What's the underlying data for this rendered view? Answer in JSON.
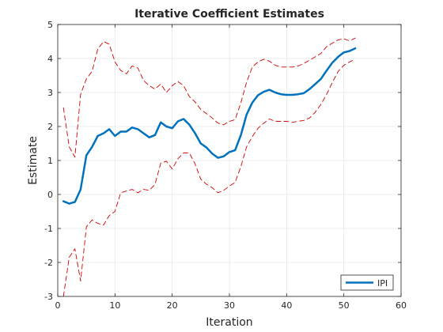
{
  "chart_data": {
    "type": "line",
    "title": "Iterative Coefficient Estimates",
    "xlabel": "Iteration",
    "ylabel": "Estimate",
    "xlim": [
      0,
      60
    ],
    "ylim": [
      -3,
      5
    ],
    "xticks": [
      0,
      10,
      20,
      30,
      40,
      50,
      60
    ],
    "yticks": [
      -3,
      -2,
      -1,
      0,
      1,
      2,
      3,
      4,
      5
    ],
    "grid": true,
    "legend_position": "bottom-right",
    "series": [
      {
        "name": "IPI",
        "role": "estimate",
        "color": "#0072BD",
        "style": "solid",
        "x": [
          1,
          2,
          3,
          4,
          5,
          6,
          7,
          8,
          9,
          10,
          11,
          12,
          13,
          14,
          15,
          16,
          17,
          18,
          19,
          20,
          21,
          22,
          23,
          24,
          25,
          26,
          27,
          28,
          29,
          30,
          31,
          32,
          33,
          34,
          35,
          36,
          37,
          38,
          39,
          40,
          41,
          42,
          43,
          44,
          45,
          46,
          47,
          48,
          49,
          50,
          51,
          52
        ],
        "y": [
          -0.2,
          -0.27,
          -0.22,
          0.15,
          1.15,
          1.4,
          1.72,
          1.8,
          1.92,
          1.72,
          1.85,
          1.85,
          1.97,
          1.92,
          1.8,
          1.68,
          1.75,
          2.12,
          2.0,
          1.95,
          2.15,
          2.22,
          2.05,
          1.8,
          1.5,
          1.38,
          1.2,
          1.08,
          1.12,
          1.25,
          1.3,
          1.75,
          2.35,
          2.7,
          2.92,
          3.02,
          3.08,
          3.0,
          2.95,
          2.93,
          2.93,
          2.95,
          2.98,
          3.1,
          3.25,
          3.4,
          3.65,
          3.88,
          4.05,
          4.18,
          4.22,
          4.3
        ]
      },
      {
        "name": "",
        "role": "upper-bound",
        "color": "#D00000",
        "style": "dashed",
        "x": [
          1,
          2,
          3,
          4,
          5,
          6,
          7,
          8,
          9,
          10,
          11,
          12,
          13,
          14,
          15,
          16,
          17,
          18,
          19,
          20,
          21,
          22,
          23,
          24,
          25,
          26,
          27,
          28,
          29,
          30,
          31,
          32,
          33,
          34,
          35,
          36,
          37,
          38,
          39,
          40,
          41,
          42,
          43,
          44,
          45,
          46,
          47,
          48,
          49,
          50,
          51,
          52
        ],
        "y": [
          2.55,
          1.4,
          1.1,
          2.95,
          3.4,
          3.62,
          4.28,
          4.5,
          4.42,
          3.9,
          3.65,
          3.55,
          3.78,
          3.72,
          3.35,
          3.2,
          3.1,
          3.25,
          3.0,
          3.2,
          3.32,
          3.2,
          2.88,
          2.72,
          2.5,
          2.38,
          2.25,
          2.1,
          2.05,
          2.15,
          2.2,
          2.7,
          3.3,
          3.75,
          3.9,
          3.98,
          3.92,
          3.8,
          3.75,
          3.75,
          3.75,
          3.78,
          3.85,
          3.95,
          4.05,
          4.15,
          4.35,
          4.45,
          4.55,
          4.58,
          4.52,
          4.6
        ]
      },
      {
        "name": "",
        "role": "lower-bound",
        "color": "#D00000",
        "style": "dashed",
        "x": [
          1,
          2,
          3,
          4,
          5,
          6,
          7,
          8,
          9,
          10,
          11,
          12,
          13,
          14,
          15,
          16,
          17,
          18,
          19,
          20,
          21,
          22,
          23,
          24,
          25,
          26,
          27,
          28,
          29,
          30,
          31,
          32,
          33,
          34,
          35,
          36,
          37,
          38,
          39,
          40,
          41,
          42,
          43,
          44,
          45,
          46,
          47,
          48,
          49,
          50,
          51,
          52
        ],
        "y": [
          -3.0,
          -1.85,
          -1.6,
          -2.55,
          -0.95,
          -0.75,
          -0.85,
          -0.9,
          -0.62,
          -0.5,
          0.05,
          0.1,
          0.15,
          0.05,
          0.15,
          0.12,
          0.3,
          0.92,
          0.98,
          0.75,
          1.05,
          1.22,
          1.22,
          0.9,
          0.45,
          0.3,
          0.2,
          0.05,
          0.12,
          0.25,
          0.35,
          0.82,
          1.4,
          1.7,
          1.95,
          2.1,
          2.22,
          2.15,
          2.15,
          2.15,
          2.12,
          2.15,
          2.18,
          2.25,
          2.42,
          2.65,
          2.95,
          3.3,
          3.62,
          3.8,
          3.9,
          3.98
        ]
      }
    ]
  },
  "colors": {
    "grid": "#e6e6e6",
    "axis": "#262626",
    "background": "#ffffff"
  }
}
